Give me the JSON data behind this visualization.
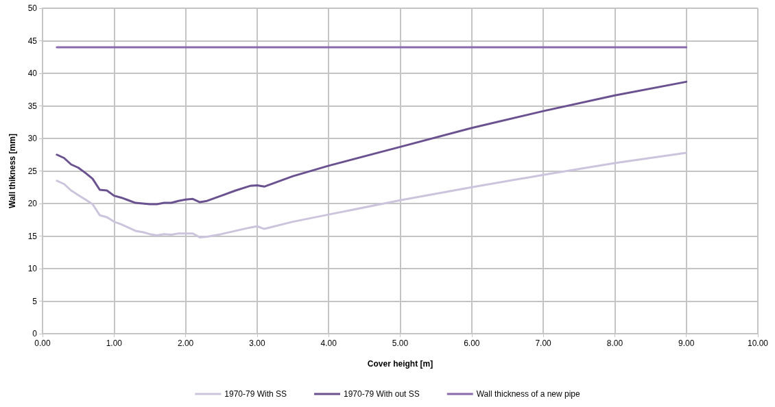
{
  "chart_data": {
    "type": "line",
    "xlabel": "Cover height [m]",
    "ylabel": "Wall thikness [mm]",
    "xlim": [
      0,
      10
    ],
    "xticks": [
      {
        "value": 0,
        "label": "0.00"
      },
      {
        "value": 1,
        "label": "1.00"
      },
      {
        "value": 2,
        "label": "2.00"
      },
      {
        "value": 3,
        "label": "3.00"
      },
      {
        "value": 4,
        "label": "4.00"
      },
      {
        "value": 5,
        "label": "5.00"
      },
      {
        "value": 6,
        "label": "6.00"
      },
      {
        "value": 7,
        "label": "7.00"
      },
      {
        "value": 8,
        "label": "8.00"
      },
      {
        "value": 9,
        "label": "9.00"
      },
      {
        "value": 10,
        "label": "10.00"
      }
    ],
    "ylim": [
      0,
      50
    ],
    "yticks": [
      0,
      5,
      10,
      15,
      20,
      25,
      30,
      35,
      40,
      45,
      50
    ],
    "grid": true,
    "legend": "bottom",
    "marker": "none",
    "line_style": "solid",
    "series": [
      {
        "name": "1970-79 With SS",
        "color": "#ccc4dc",
        "x": [
          0.2,
          0.3,
          0.4,
          0.5,
          0.6,
          0.7,
          0.8,
          0.9,
          1.0,
          1.1,
          1.2,
          1.3,
          1.4,
          1.5,
          1.6,
          1.7,
          1.8,
          1.9,
          2.0,
          2.1,
          2.2,
          2.3,
          2.5,
          2.7,
          2.9,
          3.0,
          3.1,
          3.5,
          4.0,
          5.0,
          6.0,
          7.0,
          8.0,
          9.0
        ],
        "values": [
          23.5,
          23,
          22,
          21.3,
          20.6,
          19.9,
          18.2,
          17.9,
          17.2,
          16.8,
          16.3,
          15.8,
          15.6,
          15.3,
          15.1,
          15.3,
          15.2,
          15.4,
          15.4,
          15.4,
          14.8,
          14.9,
          15.3,
          15.8,
          16.3,
          16.5,
          16.1,
          17.2,
          18.3,
          20.5,
          22.5,
          24.4,
          26.2,
          27.8
        ]
      },
      {
        "name": "1970-79 With out SS",
        "color": "#6a5190",
        "x": [
          0.2,
          0.3,
          0.4,
          0.5,
          0.6,
          0.7,
          0.8,
          0.9,
          1.0,
          1.1,
          1.2,
          1.3,
          1.4,
          1.5,
          1.6,
          1.7,
          1.8,
          1.9,
          2.0,
          2.1,
          2.2,
          2.3,
          2.5,
          2.7,
          2.9,
          3.0,
          3.1,
          3.5,
          4.0,
          5.0,
          6.0,
          7.0,
          8.0,
          9.0
        ],
        "values": [
          27.5,
          27,
          26,
          25.5,
          24.7,
          23.8,
          22.1,
          22,
          21.2,
          20.9,
          20.5,
          20.1,
          20,
          19.9,
          19.9,
          20.1,
          20.1,
          20.4,
          20.6,
          20.7,
          20.2,
          20.4,
          21.2,
          22,
          22.7,
          22.8,
          22.6,
          24.2,
          25.8,
          28.7,
          31.6,
          34.2,
          36.6,
          38.7
        ]
      },
      {
        "name": "Wall thickness of a new pipe",
        "color": "#8a6aac",
        "x": [
          0.2,
          9.0
        ],
        "values": [
          44,
          44
        ]
      }
    ]
  }
}
